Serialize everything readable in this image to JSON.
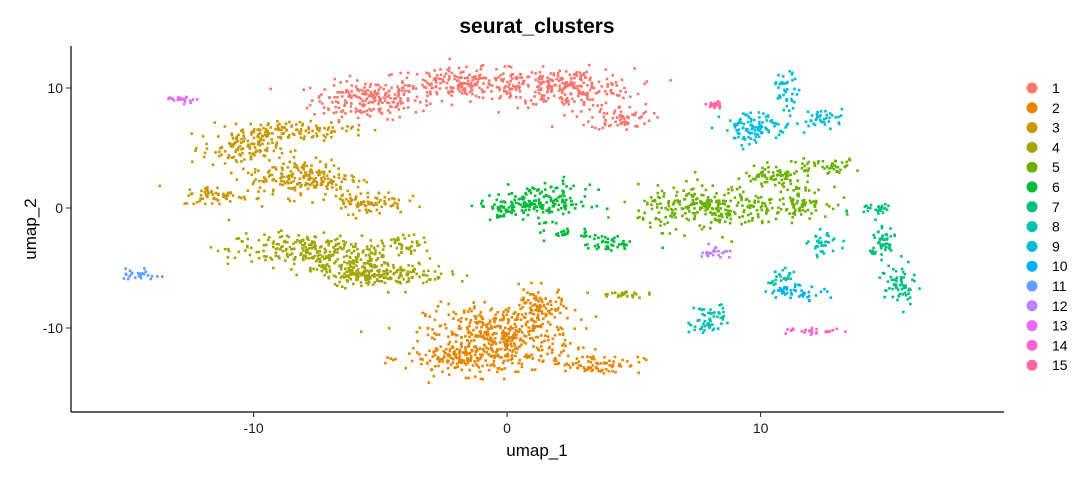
{
  "chart_data": {
    "type": "scatter",
    "title": "seurat_clusters",
    "xlabel": "umap_1",
    "ylabel": "umap_2",
    "xlim": [
      -17.2,
      19.6
    ],
    "ylim": [
      -17.0,
      13.5
    ],
    "xticks": [
      -10,
      0,
      10
    ],
    "yticks": [
      -10,
      0,
      10
    ],
    "grid": false,
    "legend_position": "right",
    "series": [
      {
        "name": "1",
        "color": "#F8766D",
        "regions": [
          [
            -5.5,
            9.0,
            2.2,
            1.6
          ],
          [
            -1.5,
            10.3,
            3.5,
            1.3
          ],
          [
            2.5,
            10.0,
            2.5,
            1.6
          ],
          [
            4.5,
            7.5,
            1.2,
            1.0
          ]
        ]
      },
      {
        "name": "2",
        "color": "#E58700",
        "regions": [
          [
            -0.3,
            -10.5,
            2.9,
            2.4
          ],
          [
            -1.5,
            -12.5,
            2.5,
            1.4
          ],
          [
            1.2,
            -8.2,
            1.0,
            1.5
          ],
          [
            3.5,
            -13.0,
            1.8,
            0.8
          ]
        ]
      },
      {
        "name": "3",
        "color": "#C99800",
        "regions": [
          [
            -10.5,
            5.0,
            1.5,
            1.5
          ],
          [
            -8.0,
            2.5,
            2.2,
            1.6
          ],
          [
            -11.5,
            1.0,
            1.3,
            0.8
          ],
          [
            -5.5,
            0.5,
            1.5,
            1.0
          ],
          [
            -8.5,
            6.5,
            2.5,
            0.8
          ]
        ]
      },
      {
        "name": "4",
        "color": "#A3A500",
        "regions": [
          [
            -8.0,
            -3.5,
            3.0,
            1.4
          ],
          [
            -6.0,
            -5.0,
            1.5,
            1.5
          ],
          [
            -4.0,
            -3.0,
            1.0,
            0.7
          ],
          [
            -4.8,
            -5.5,
            2.5,
            1.0
          ],
          [
            4.5,
            -7.2,
            0.9,
            0.3
          ]
        ]
      },
      {
        "name": "5",
        "color": "#6BB100",
        "regions": [
          [
            8.0,
            0.0,
            2.8,
            1.8
          ],
          [
            10.5,
            2.5,
            1.2,
            1.0
          ],
          [
            12.5,
            3.5,
            1.5,
            0.6
          ],
          [
            11.5,
            0.5,
            1.2,
            1.2
          ]
        ]
      },
      {
        "name": "6",
        "color": "#00BA38",
        "regions": [
          [
            1.5,
            0.5,
            1.8,
            1.5
          ],
          [
            0.0,
            0.0,
            1.2,
            0.8
          ],
          [
            4.0,
            -3.0,
            1.0,
            0.7
          ],
          [
            2.8,
            -2.2,
            1.2,
            0.4
          ]
        ]
      },
      {
        "name": "7",
        "color": "#00BF7D",
        "regions": [
          [
            14.5,
            0.0,
            0.8,
            0.5
          ],
          [
            14.8,
            -3.0,
            0.5,
            2.0
          ],
          [
            15.5,
            -6.5,
            0.6,
            1.8
          ]
        ]
      },
      {
        "name": "8",
        "color": "#00C0AF",
        "regions": [
          [
            8.0,
            -9.0,
            0.6,
            1.0
          ],
          [
            10.8,
            -6.0,
            0.6,
            1.0
          ],
          [
            12.5,
            -3.0,
            0.6,
            1.0
          ],
          [
            7.8,
            -10.0,
            0.6,
            0.6
          ]
        ]
      },
      {
        "name": "9",
        "color": "#00BCD8",
        "regions": [
          [
            11.0,
            9.8,
            0.5,
            1.5
          ],
          [
            10.0,
            7.0,
            1.5,
            1.0
          ],
          [
            12.5,
            7.5,
            0.8,
            0.8
          ],
          [
            9.5,
            6.0,
            0.6,
            0.8
          ]
        ]
      },
      {
        "name": "10",
        "color": "#00B0F6",
        "regions": [
          [
            11.5,
            -7.0,
            1.2,
            0.6
          ]
        ]
      },
      {
        "name": "11",
        "color": "#619CFF",
        "regions": [
          [
            -14.5,
            -5.5,
            0.8,
            0.5
          ]
        ]
      },
      {
        "name": "12",
        "color": "#B983FF",
        "regions": [
          [
            8.2,
            -3.7,
            0.6,
            0.6
          ]
        ]
      },
      {
        "name": "13",
        "color": "#E76BF3",
        "regions": [
          [
            -12.8,
            9.1,
            0.6,
            0.3
          ]
        ]
      },
      {
        "name": "14",
        "color": "#FD61D1",
        "regions": [
          [
            12.0,
            -10.3,
            1.3,
            0.3
          ]
        ]
      },
      {
        "name": "15",
        "color": "#FF67A4",
        "regions": [
          [
            8.2,
            8.6,
            0.3,
            0.3
          ]
        ]
      }
    ]
  }
}
